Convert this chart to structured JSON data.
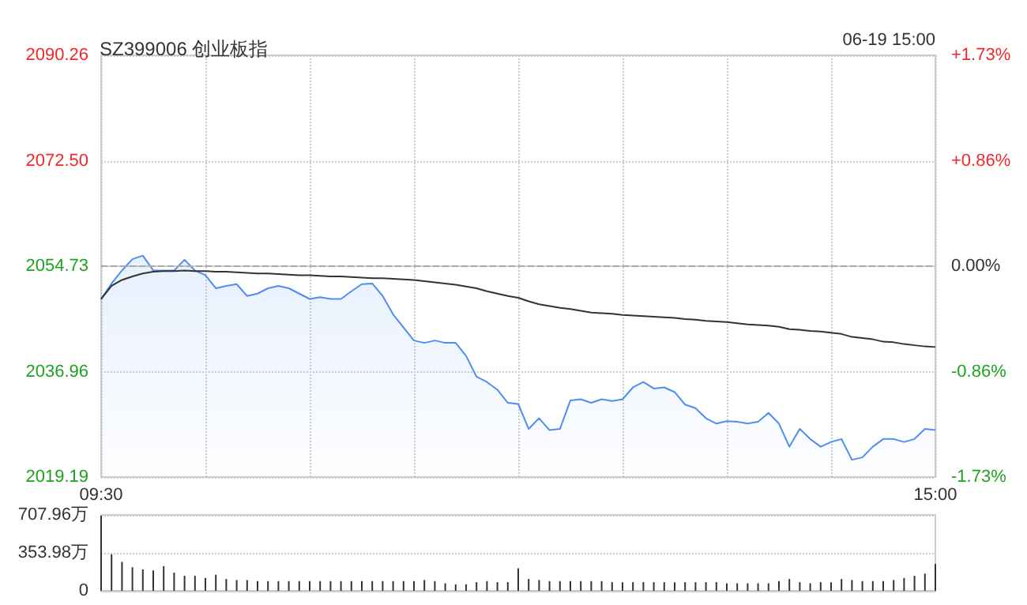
{
  "chart_data": [
    {
      "type": "area",
      "title": "SZ399006 创业板指",
      "annotations": [
        "06-19 15:00"
      ],
      "marker": "none",
      "grid": true,
      "categories": [
        "09:30",
        null,
        null,
        null,
        null,
        null,
        null,
        null,
        null,
        null,
        null,
        null,
        null,
        null,
        null,
        null,
        null,
        null,
        null,
        null,
        null,
        null,
        null,
        null,
        null,
        null,
        null,
        null,
        null,
        null,
        null,
        null,
        null,
        null,
        null,
        null,
        null,
        null,
        null,
        null,
        null,
        null,
        null,
        null,
        null,
        null,
        null,
        null,
        null,
        null,
        null,
        null,
        null,
        null,
        null,
        null,
        null,
        null,
        null,
        null,
        null,
        null,
        null,
        null,
        null,
        null,
        null,
        null,
        null,
        null,
        null,
        null,
        null,
        null,
        null,
        null,
        null,
        null,
        null,
        null,
        "15:00"
      ],
      "ylim": [
        2019.19,
        2090.26
      ],
      "yticks": [
        2019.19,
        2036.96,
        2054.73,
        {
          "value": 2072.5,
          "label": "2072.50"
        },
        2090.26
      ],
      "y2lim": [
        -1.73,
        1.73
      ],
      "y2ticks": [
        {
          "value": -1.73,
          "label": "-1.73%"
        },
        {
          "value": -0.86,
          "label": "-0.86%"
        },
        {
          "value": 0,
          "label": "0.00%"
        },
        {
          "value": 0.86,
          "label": "+0.86%"
        },
        {
          "value": 1.73,
          "label": "+1.73%"
        }
      ],
      "ref_lines": [
        {
          "axis": "y",
          "value": 2054.73,
          "line_style": "dashed",
          "color": "#aaaaaa"
        }
      ],
      "series": [
        {
          "color": "#4f8ef0",
          "values": [
            2049.2,
            2051.8,
            2054.0,
            2055.9,
            2056.5,
            2054.0,
            2054.0,
            2054.0,
            2055.8,
            2054.0,
            2053.2,
            2051.0,
            2051.4,
            2051.7,
            2049.7,
            2050.1,
            2051.0,
            2051.4,
            2051.0,
            2050.1,
            2049.2,
            2049.5,
            2049.2,
            2049.2,
            2050.5,
            2051.7,
            2051.8,
            2049.7,
            2046.6,
            2044.4,
            2042.2,
            2041.8,
            2042.2,
            2041.8,
            2041.8,
            2039.6,
            2036.1,
            2035.2,
            2033.9,
            2031.7,
            2031.5,
            2027.3,
            2029.1,
            2027.1,
            2027.3,
            2032.1,
            2032.3,
            2031.7,
            2032.3,
            2032.0,
            2032.3,
            2034.3,
            2035.2,
            2034.1,
            2034.3,
            2033.5,
            2031.4,
            2030.8,
            2029.1,
            2028.2,
            2028.6,
            2028.5,
            2028.2,
            2028.5,
            2030.0,
            2028.2,
            2024.3,
            2027.3,
            2025.6,
            2024.3,
            2025.1,
            2025.6,
            2022.1,
            2022.5,
            2024.3,
            2025.6,
            2025.6,
            2025.1,
            2025.6,
            2027.3,
            2027.1
          ]
        },
        {
          "type": "line",
          "color": "#333333",
          "values": [
            2049.2,
            2051.4,
            2052.4,
            2053.0,
            2053.5,
            2053.8,
            2053.9,
            2053.9,
            2054.0,
            2053.9,
            2053.9,
            2053.8,
            2053.8,
            2053.7,
            2053.6,
            2053.5,
            2053.5,
            2053.4,
            2053.3,
            2053.2,
            2053.2,
            2053.1,
            2053.0,
            2053.0,
            2052.9,
            2052.8,
            2052.7,
            2052.7,
            2052.6,
            2052.5,
            2052.4,
            2052.2,
            2052.0,
            2051.8,
            2051.6,
            2051.3,
            2051.0,
            2050.5,
            2050.1,
            2049.7,
            2049.4,
            2048.8,
            2048.3,
            2048.0,
            2047.7,
            2047.5,
            2047.2,
            2046.9,
            2046.8,
            2046.7,
            2046.5,
            2046.4,
            2046.3,
            2046.2,
            2046.1,
            2046.0,
            2045.8,
            2045.7,
            2045.5,
            2045.4,
            2045.3,
            2045.1,
            2044.9,
            2044.8,
            2044.7,
            2044.5,
            2044.1,
            2044.0,
            2043.8,
            2043.7,
            2043.5,
            2043.3,
            2042.8,
            2042.6,
            2042.4,
            2042.0,
            2041.9,
            2041.6,
            2041.4,
            2041.2,
            2041.1
          ]
        }
      ]
    },
    {
      "type": "bar",
      "color": "#333333",
      "grid": "y",
      "tick_labels": "y",
      "categories": [
        null,
        null,
        null,
        null,
        null,
        null,
        null,
        null,
        null,
        null,
        null,
        null,
        null,
        null,
        null,
        null,
        null,
        null,
        null,
        null,
        null,
        null,
        null,
        null,
        null,
        null,
        null,
        null,
        null,
        null,
        null,
        null,
        null,
        null,
        null,
        null,
        null,
        null,
        null,
        null,
        null,
        null,
        null,
        null,
        null,
        null,
        null,
        null,
        null,
        null,
        null,
        null,
        null,
        null,
        null,
        null,
        null,
        null,
        null,
        null,
        null,
        null,
        null,
        null,
        null,
        null,
        null,
        null,
        null,
        null,
        null,
        null,
        null,
        null,
        null,
        null,
        null,
        null,
        null,
        null,
        null
      ],
      "ylim": [
        0,
        707.96
      ],
      "yticks": [
        0,
        {
          "value": 353.98,
          "label": "353.98万"
        },
        {
          "value": 707.96,
          "label": "707.96万"
        }
      ],
      "values": [
        700,
        340,
        270,
        220,
        200,
        190,
        230,
        170,
        140,
        140,
        120,
        150,
        110,
        100,
        100,
        90,
        90,
        90,
        90,
        90,
        90,
        90,
        90,
        90,
        90,
        90,
        90,
        90,
        90,
        90,
        90,
        100,
        90,
        70,
        60,
        60,
        80,
        90,
        80,
        80,
        210,
        110,
        100,
        90,
        90,
        90,
        90,
        90,
        90,
        80,
        80,
        80,
        80,
        80,
        80,
        80,
        80,
        80,
        80,
        80,
        70,
        70,
        70,
        70,
        70,
        90,
        110,
        80,
        70,
        80,
        80,
        110,
        100,
        90,
        90,
        90,
        100,
        120,
        140,
        160,
        250
      ]
    }
  ]
}
